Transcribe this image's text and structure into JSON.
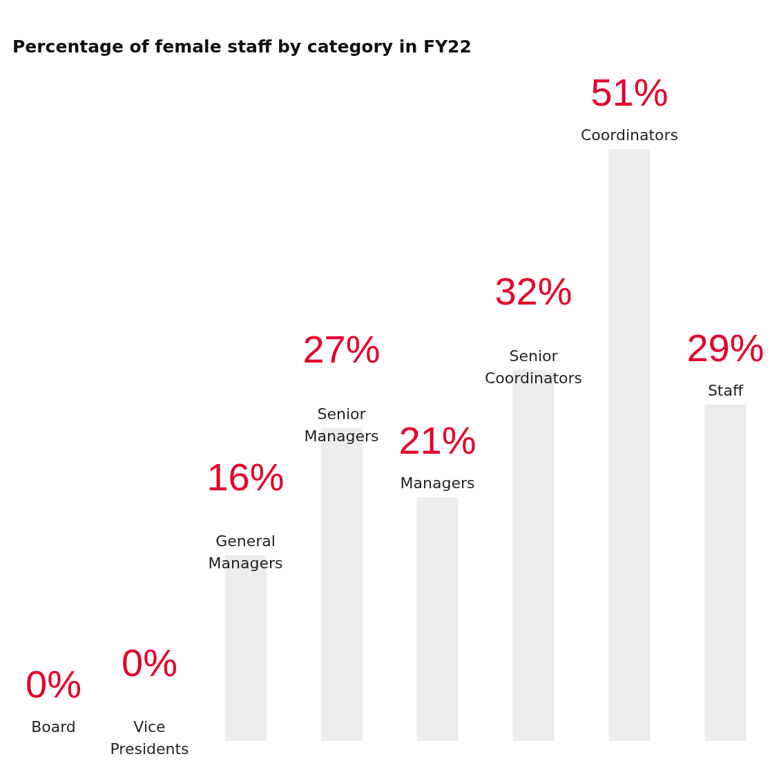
{
  "chart_data": {
    "type": "bar",
    "title": "Percentage of female staff by category in FY22",
    "categories": [
      "Board",
      "Vice Presidents",
      "General Managers",
      "Senior Managers",
      "Managers",
      "Senior Coordinators",
      "Coordinators",
      "Staff"
    ],
    "values": [
      0,
      0,
      16,
      27,
      21,
      32,
      51,
      29
    ],
    "value_labels": [
      "0%",
      "0%",
      "16%",
      "27%",
      "21%",
      "32%",
      "51%",
      "29%"
    ],
    "color": "#ececec"
  }
}
